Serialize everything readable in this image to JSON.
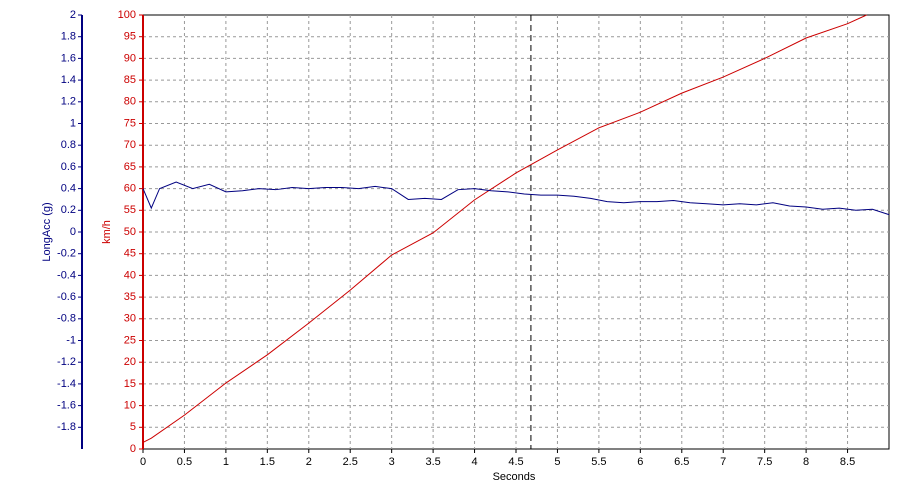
{
  "chart_data": {
    "type": "line",
    "xlabel": "Seconds",
    "ylabel": "km/h",
    "y2label": "LongAcc (g)",
    "xlim": [
      0,
      9
    ],
    "xticks": [
      0,
      0.5,
      1,
      1.5,
      2,
      2.5,
      3,
      3.5,
      4,
      4.5,
      5,
      5.5,
      6,
      6.5,
      7,
      7.5,
      8,
      8.5
    ],
    "ylim": [
      0,
      100
    ],
    "yticks": [
      0,
      5,
      10,
      15,
      20,
      25,
      30,
      35,
      40,
      45,
      50,
      55,
      60,
      65,
      70,
      75,
      80,
      85,
      90,
      95,
      100
    ],
    "y2lim": [
      -2,
      2
    ],
    "y2ticks": [
      2,
      1.8,
      1.6,
      1.4,
      1.2,
      1,
      0.8,
      0.6,
      0.4,
      0.2,
      0,
      -0.2,
      -0.4,
      -0.6,
      -0.8,
      -1,
      -1.2,
      -1.4,
      -1.6,
      -1.8
    ],
    "grid": true,
    "ycolor": "#cc0000",
    "y2color": "#000080",
    "cursor_x": 4.68,
    "series": [
      {
        "color": "#cc0000",
        "x": [
          0,
          0.1,
          0.5,
          1,
          1.5,
          2,
          2.5,
          3,
          3.5,
          4,
          4.5,
          5,
          5.5,
          6,
          6.5,
          7,
          7.5,
          8,
          8.5,
          8.73
        ],
        "values": [
          1.5,
          2.5,
          7.8,
          15.2,
          21.7,
          29,
          36.6,
          44.7,
          49.8,
          57.4,
          63.6,
          68.9,
          74,
          77.6,
          82,
          85.7,
          90,
          94.7,
          98,
          100
        ]
      },
      {
        "color": "#000080",
        "axis": "y2",
        "x": [
          0,
          0.1,
          0.2,
          0.4,
          0.6,
          0.8,
          1,
          1.2,
          1.4,
          1.6,
          1.8,
          2,
          2.2,
          2.4,
          2.6,
          2.8,
          3,
          3.2,
          3.4,
          3.6,
          3.8,
          4,
          4.2,
          4.4,
          4.6,
          4.8,
          5,
          5.2,
          5.4,
          5.6,
          5.8,
          6,
          6.2,
          6.4,
          6.6,
          6.8,
          7,
          7.2,
          7.4,
          7.6,
          7.8,
          8,
          8.2,
          8.4,
          8.6,
          8.8,
          9
        ],
        "values": [
          0.4,
          0.22,
          0.4,
          0.46,
          0.4,
          0.44,
          0.37,
          0.38,
          0.4,
          0.39,
          0.41,
          0.4,
          0.41,
          0.41,
          0.4,
          0.42,
          0.4,
          0.3,
          0.31,
          0.3,
          0.39,
          0.4,
          0.38,
          0.37,
          0.35,
          0.34,
          0.34,
          0.33,
          0.31,
          0.28,
          0.27,
          0.28,
          0.28,
          0.29,
          0.27,
          0.26,
          0.25,
          0.26,
          0.25,
          0.27,
          0.24,
          0.23,
          0.21,
          0.22,
          0.2,
          0.21,
          0.16
        ]
      }
    ]
  }
}
